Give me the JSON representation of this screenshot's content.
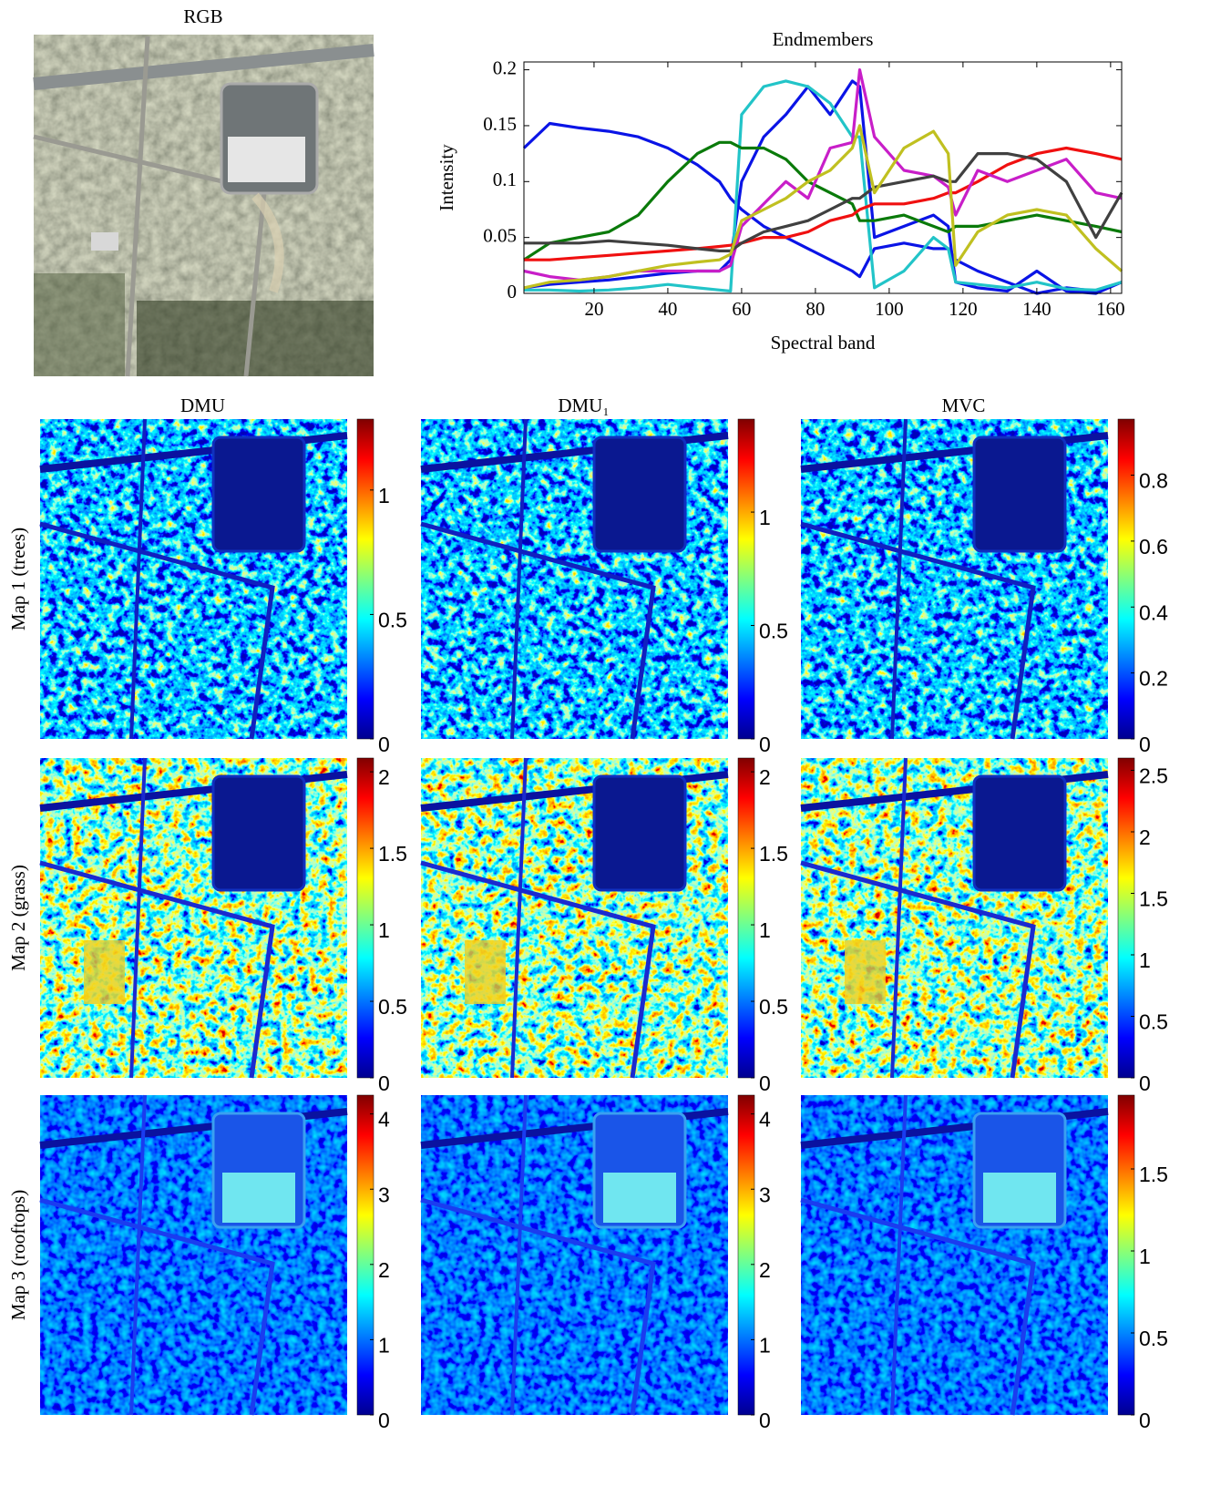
{
  "image": {
    "title": "RGB"
  },
  "chart_data": [
    {
      "type": "line",
      "title": "Endmembers",
      "x_label": "Spectral band",
      "y_label": "Intensity",
      "x": [
        1,
        8,
        16,
        24,
        32,
        40,
        48,
        54,
        57,
        60,
        66,
        72,
        78,
        84,
        90,
        92,
        96,
        104,
        112,
        116,
        118,
        124,
        132,
        140,
        148,
        156,
        163
      ],
      "xlim": [
        1,
        163
      ],
      "ylim": [
        0,
        0.207
      ],
      "xticks": [
        20,
        40,
        60,
        80,
        100,
        120,
        140,
        160
      ],
      "yticks": [
        0,
        0.05,
        0.1,
        0.15,
        0.2
      ],
      "series": [
        {
          "color": "#0a14e6",
          "values": [
            0.13,
            0.152,
            0.148,
            0.145,
            0.14,
            0.13,
            0.115,
            0.1,
            0.085,
            0.075,
            0.06,
            0.05,
            0.04,
            0.03,
            0.02,
            0.015,
            0.04,
            0.045,
            0.04,
            0.04,
            0.03,
            0.02,
            0.01,
            0.0,
            0.005,
            0.002,
            0.01
          ]
        },
        {
          "color": "#0a14e6",
          "values": [
            0.005,
            0.008,
            0.01,
            0.012,
            0.015,
            0.018,
            0.02,
            0.02,
            0.03,
            0.1,
            0.14,
            0.16,
            0.185,
            0.16,
            0.19,
            0.185,
            0.05,
            0.06,
            0.07,
            0.06,
            0.01,
            0.005,
            0.002,
            0.02,
            0.002,
            0.0,
            0.01
          ]
        },
        {
          "color": "#22c4c8",
          "values": [
            0.003,
            0.003,
            0.002,
            0.003,
            0.005,
            0.008,
            0.005,
            0.003,
            0.002,
            0.16,
            0.185,
            0.19,
            0.185,
            0.17,
            0.14,
            0.14,
            0.005,
            0.02,
            0.05,
            0.04,
            0.01,
            0.008,
            0.005,
            0.01,
            0.004,
            0.003,
            0.01
          ]
        },
        {
          "color": "#0a7a0a",
          "values": [
            0.03,
            0.045,
            0.05,
            0.055,
            0.07,
            0.1,
            0.125,
            0.135,
            0.135,
            0.13,
            0.13,
            0.12,
            0.1,
            0.09,
            0.08,
            0.065,
            0.065,
            0.07,
            0.06,
            0.055,
            0.06,
            0.06,
            0.065,
            0.07,
            0.065,
            0.06,
            0.055
          ]
        },
        {
          "color": "#f01010",
          "values": [
            0.03,
            0.03,
            0.032,
            0.034,
            0.036,
            0.038,
            0.04,
            0.042,
            0.043,
            0.045,
            0.05,
            0.05,
            0.055,
            0.065,
            0.07,
            0.075,
            0.08,
            0.08,
            0.085,
            0.09,
            0.09,
            0.1,
            0.115,
            0.125,
            0.13,
            0.125,
            0.12
          ]
        },
        {
          "color": "#c81ec8",
          "values": [
            0.02,
            0.015,
            0.012,
            0.015,
            0.02,
            0.02,
            0.02,
            0.02,
            0.025,
            0.06,
            0.08,
            0.1,
            0.085,
            0.13,
            0.135,
            0.2,
            0.14,
            0.11,
            0.105,
            0.095,
            0.07,
            0.11,
            0.1,
            0.11,
            0.12,
            0.09,
            0.085
          ]
        },
        {
          "color": "#404040",
          "values": [
            0.045,
            0.045,
            0.045,
            0.047,
            0.045,
            0.043,
            0.04,
            0.038,
            0.038,
            0.045,
            0.055,
            0.06,
            0.065,
            0.075,
            0.085,
            0.085,
            0.095,
            0.1,
            0.105,
            0.1,
            0.1,
            0.125,
            0.125,
            0.12,
            0.1,
            0.05,
            0.09
          ]
        },
        {
          "color": "#c0c020",
          "values": [
            0.005,
            0.01,
            0.012,
            0.015,
            0.02,
            0.025,
            0.028,
            0.03,
            0.035,
            0.065,
            0.075,
            0.085,
            0.1,
            0.11,
            0.13,
            0.15,
            0.09,
            0.13,
            0.145,
            0.125,
            0.025,
            0.055,
            0.07,
            0.075,
            0.07,
            0.04,
            0.02
          ]
        }
      ]
    },
    {
      "type": "heatmap",
      "colormap": "jet",
      "columns": [
        "DMU",
        "DMU₁",
        "MVC"
      ],
      "rows": [
        "Map 1 (trees)",
        "Map 2 (grass)",
        "Map 3 (rooftops)"
      ],
      "colorbars": [
        [
          {
            "clim": [
              0,
              1.285
            ],
            "cticks": [
              0,
              0.5,
              1
            ]
          },
          {
            "clim": [
              0,
              1.41
            ],
            "cticks": [
              0,
              0.5,
              1
            ]
          },
          {
            "clim": [
              0,
              0.97
            ],
            "cticks": [
              0,
              0.2,
              0.4,
              0.6,
              0.8
            ]
          }
        ],
        [
          {
            "clim": [
              0,
              2.09
            ],
            "cticks": [
              0,
              0.5,
              1,
              1.5,
              2
            ]
          },
          {
            "clim": [
              0,
              2.09
            ],
            "cticks": [
              0,
              0.5,
              1,
              1.5,
              2
            ]
          },
          {
            "clim": [
              0,
              2.6
            ],
            "cticks": [
              0,
              0.5,
              1,
              1.5,
              2,
              2.5
            ]
          }
        ],
        [
          {
            "clim": [
              0,
              4.25
            ],
            "cticks": [
              0,
              1,
              2,
              3,
              4
            ]
          },
          {
            "clim": [
              0,
              4.25
            ],
            "cticks": [
              0,
              1,
              2,
              3,
              4
            ]
          },
          {
            "clim": [
              0,
              1.95
            ],
            "cticks": [
              0,
              0.5,
              1,
              1.5
            ]
          }
        ]
      ]
    }
  ]
}
